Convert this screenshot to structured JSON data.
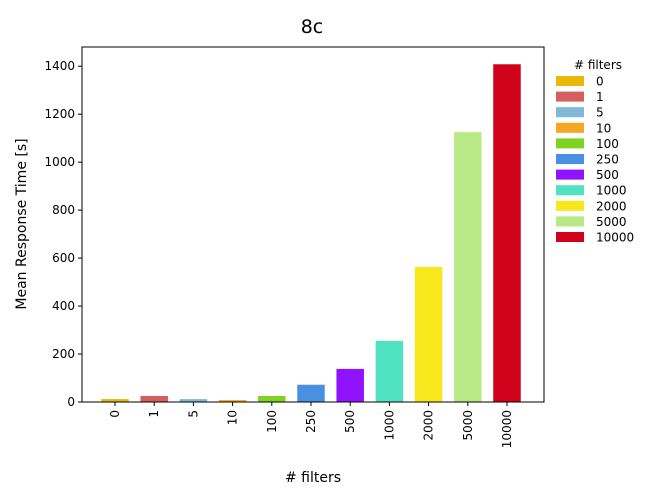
{
  "chart_data": {
    "type": "bar",
    "title": "8c",
    "xlabel": "# filters",
    "ylabel": "Mean Response Time [s]",
    "categories": [
      "0",
      "1",
      "5",
      "10",
      "100",
      "250",
      "500",
      "1000",
      "2000",
      "5000",
      "10000"
    ],
    "values": [
      12,
      25,
      12,
      8,
      25,
      72,
      138,
      255,
      563,
      1125,
      1408
    ],
    "colors": [
      "#e6b90a",
      "#d45f5f",
      "#7fb8d8",
      "#f5a623",
      "#7ed321",
      "#4a90e2",
      "#9013fe",
      "#50e3c2",
      "#f8e71c",
      "#b8e986",
      "#d0021b"
    ],
    "ylim": [
      0,
      1480
    ],
    "yticks": [
      0,
      200,
      400,
      600,
      800,
      1000,
      1200,
      1400
    ],
    "grid": false,
    "legend": {
      "title": "# filters",
      "placement": "outside-right",
      "entries": [
        "0",
        "1",
        "5",
        "10",
        "100",
        "250",
        "500",
        "1000",
        "2000",
        "5000",
        "10000"
      ]
    }
  }
}
